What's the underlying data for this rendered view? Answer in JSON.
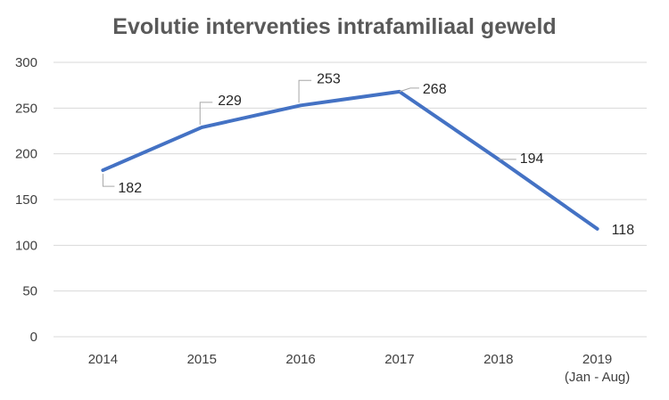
{
  "chart_data": {
    "type": "line",
    "title": "Evolutie interventies intrafamiliaal geweld",
    "xlabel": "",
    "ylabel": "",
    "categories": [
      [
        "2014"
      ],
      [
        "2015"
      ],
      [
        "2016"
      ],
      [
        "2017"
      ],
      [
        "2018"
      ],
      [
        "2019",
        "(Jan - Aug)"
      ]
    ],
    "series": [
      {
        "values": [
          182,
          229,
          253,
          268,
          194,
          118
        ],
        "color": "#4472c4"
      }
    ],
    "data_labels": [
      "182",
      "229",
      "253",
      "268",
      "194",
      "118"
    ],
    "ylim": [
      0,
      300
    ],
    "yticks": [
      "0",
      "50",
      "100",
      "150",
      "200",
      "250",
      "300"
    ],
    "grid": true,
    "legend": "none"
  }
}
